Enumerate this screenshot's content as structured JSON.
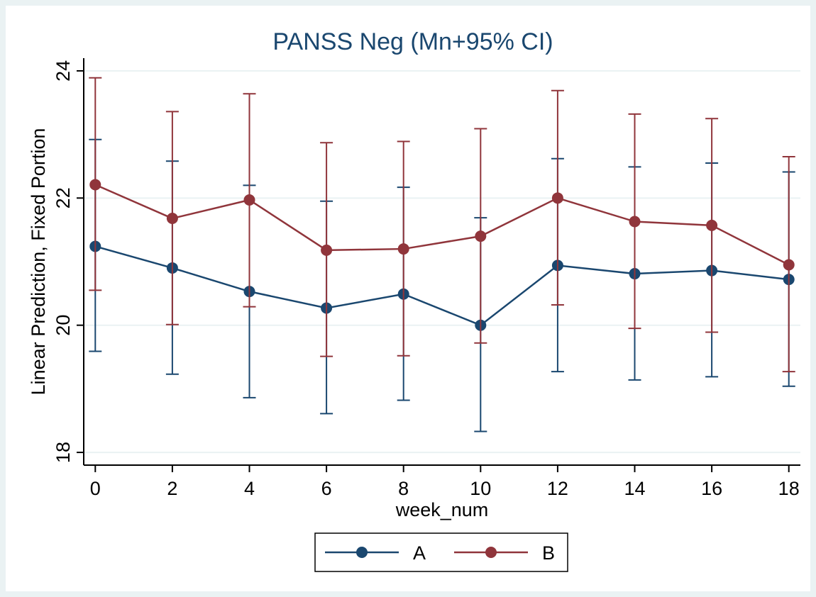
{
  "chart_data": {
    "type": "line",
    "title": "PANSS Neg (Mn+95% CI)",
    "xlabel": "week_num",
    "ylabel": "Linear Prediction, Fixed Portion",
    "x": [
      0,
      2,
      4,
      6,
      8,
      10,
      12,
      14,
      16,
      18
    ],
    "x_ticks": [
      "0",
      "2",
      "4",
      "6",
      "8",
      "10",
      "12",
      "14",
      "16",
      "18"
    ],
    "y_ticks": [
      "18",
      "20",
      "22",
      "24"
    ],
    "xlim": [
      -0.3,
      18.3
    ],
    "ylim": [
      17.8,
      24.2
    ],
    "grid": true,
    "legend_position": "bottom",
    "series": [
      {
        "name": "A",
        "color": "#1a476f",
        "values": [
          21.24,
          20.9,
          20.53,
          20.27,
          20.49,
          20.0,
          20.94,
          20.81,
          20.86,
          20.72
        ],
        "lower": [
          19.59,
          19.23,
          18.86,
          18.61,
          18.82,
          18.33,
          19.27,
          19.14,
          19.19,
          19.04
        ],
        "upper": [
          22.92,
          22.58,
          22.2,
          21.95,
          22.17,
          21.69,
          22.62,
          22.49,
          22.55,
          22.41
        ]
      },
      {
        "name": "B",
        "color": "#90353b",
        "values": [
          22.21,
          21.68,
          21.97,
          21.18,
          21.2,
          21.4,
          22.0,
          21.63,
          21.57,
          20.95
        ],
        "lower": [
          20.55,
          20.01,
          20.29,
          19.51,
          19.52,
          19.72,
          20.32,
          19.95,
          19.89,
          19.27
        ],
        "upper": [
          23.89,
          23.36,
          23.64,
          22.87,
          22.89,
          23.09,
          23.69,
          23.32,
          23.25,
          22.65
        ]
      }
    ]
  }
}
